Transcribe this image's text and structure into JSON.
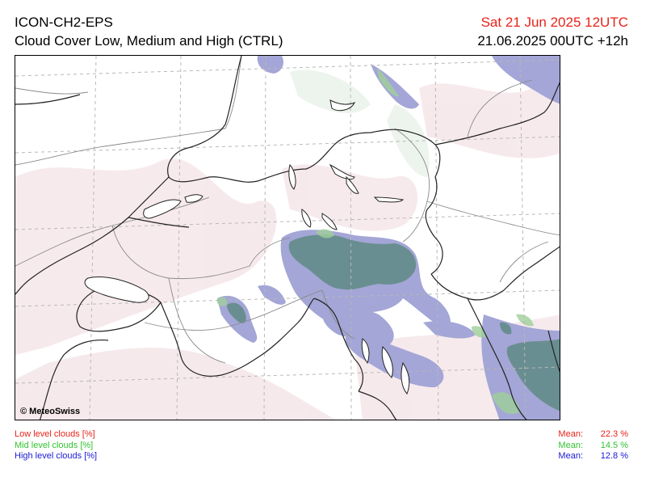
{
  "header": {
    "model": "ICON-CH2-EPS",
    "product": "Cloud Cover Low, Medium and High (CTRL)",
    "valid_time": "Sat 21 Jun 2025 12UTC",
    "run_time": "21.06.2025 00UTC +12h"
  },
  "map": {
    "copyright": "© MeteoSwiss"
  },
  "legend": {
    "items": [
      {
        "label": "Low level clouds [%]",
        "color": "#e8231a"
      },
      {
        "label": "Mid level clouds [%]",
        "color": "#31c331"
      },
      {
        "label": "High level clouds [%]",
        "color": "#1a1ad6"
      }
    ]
  },
  "means": [
    {
      "label": "Mean:",
      "value": "22.3 %",
      "color": "#e8231a"
    },
    {
      "label": "Mean:",
      "value": "14.5 %",
      "color": "#31c331"
    },
    {
      "label": "Mean:",
      "value": "12.8 %",
      "color": "#1a1ad6"
    }
  ]
}
